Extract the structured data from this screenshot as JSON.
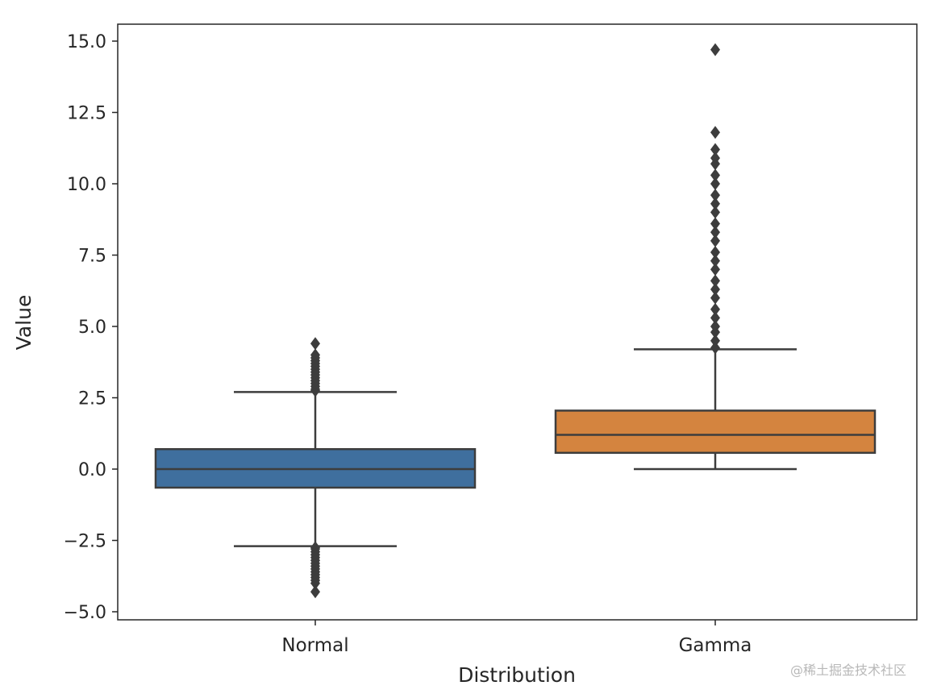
{
  "chart_data": {
    "type": "box",
    "xlabel": "Distribution",
    "ylabel": "Value",
    "ylim": [
      -5.2,
      15.6
    ],
    "yticks": [
      "−5.0",
      "−2.5",
      "0.0",
      "2.5",
      "5.0",
      "7.5",
      "10.0",
      "12.5",
      "15.0"
    ],
    "ytick_values": [
      -5,
      -2.5,
      0,
      2.5,
      5,
      7.5,
      10,
      12.5,
      15
    ],
    "categories": [
      "Normal",
      "Gamma"
    ],
    "grid": false,
    "boxes": [
      {
        "name": "Normal",
        "color": "#3f6f9e",
        "whisker_low": -2.7,
        "q1": -0.65,
        "median": 0.0,
        "q3": 0.7,
        "whisker_high": 2.7,
        "outliers": [
          2.75,
          2.8,
          2.9,
          3.0,
          3.1,
          3.2,
          3.3,
          3.4,
          3.5,
          3.6,
          3.7,
          3.8,
          3.9,
          4.0,
          4.4,
          -2.75,
          -2.8,
          -2.9,
          -3.0,
          -3.1,
          -3.2,
          -3.3,
          -3.4,
          -3.5,
          -3.6,
          -3.7,
          -3.8,
          -3.9,
          -4.0,
          -4.3
        ]
      },
      {
        "name": "Gamma",
        "color": "#d4843f",
        "whisker_low": 0.0,
        "q1": 0.57,
        "median": 1.2,
        "q3": 2.05,
        "whisker_high": 4.2,
        "outliers": [
          4.25,
          4.5,
          4.8,
          5.0,
          5.3,
          5.6,
          6.0,
          6.3,
          6.6,
          7.0,
          7.3,
          7.6,
          8.0,
          8.3,
          8.6,
          9.0,
          9.3,
          9.6,
          10.0,
          10.3,
          10.7,
          10.9,
          11.2,
          11.8,
          14.7
        ]
      }
    ]
  },
  "watermark": "@稀土掘金技术社区"
}
